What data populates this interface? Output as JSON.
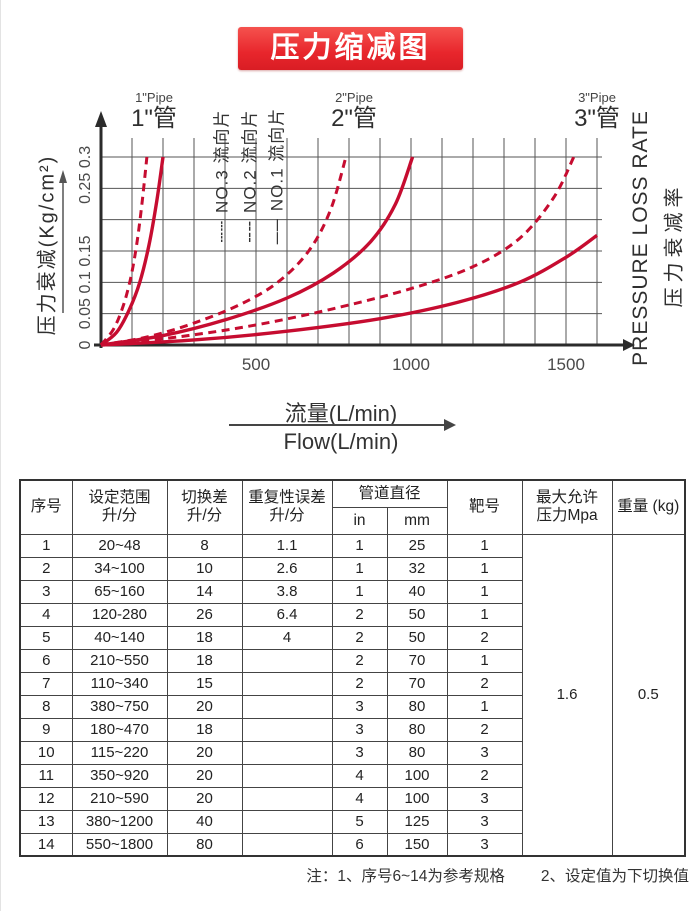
{
  "page": {
    "title_banner": "压力缩减图"
  },
  "chart_data": {
    "type": "line",
    "title": "压力缩减图",
    "x_axis": {
      "label_cn": "流量(L/min)",
      "label_en": "Flow(L/min)",
      "ticks": [
        500,
        1000,
        1500
      ],
      "range": [
        0,
        1600
      ],
      "grid_step": 100
    },
    "y_axis": {
      "label_left": "压力衰减(Kg/cm²)",
      "label_right_en": "PRESSURE LOSS RATE",
      "label_right_cn": "压力衰减率",
      "ticks": [
        {
          "label": "0",
          "value": 0
        },
        {
          "label": "0.05",
          "value": 0.05
        },
        {
          "label": "0.1",
          "value": 0.1
        },
        {
          "label": "0.15",
          "value": 0.15
        },
        {
          "label": "0.25",
          "value": 0.25
        },
        {
          "label": "0.3",
          "value": 0.3
        }
      ],
      "range": [
        0,
        0.3
      ],
      "grid_step": 0.05
    },
    "pipe_labels": [
      {
        "en": "1\"Pipe",
        "cn": "1\"管"
      },
      {
        "en": "2\"Pipe",
        "cn": "2\"管"
      },
      {
        "en": "3\"Pipe",
        "cn": "3\"管"
      }
    ],
    "legend": [
      {
        "symbol": "┄┄",
        "label": "NO.3 流向片",
        "style": "dashed"
      },
      {
        "symbol": "╌╌",
        "label": "NO.2 流向片",
        "style": "dashed"
      },
      {
        "symbol": "──",
        "label": "NO.1 流向片",
        "style": "solid"
      }
    ],
    "line_color": "#c60c30",
    "grid_on": true,
    "series": [
      {
        "name": "1\"管 dashed",
        "style": "dashed",
        "points": [
          [
            0,
            0
          ],
          [
            40,
            0.025
          ],
          [
            70,
            0.06
          ],
          [
            95,
            0.105
          ],
          [
            115,
            0.16
          ],
          [
            132,
            0.225
          ],
          [
            148,
            0.3
          ]
        ]
      },
      {
        "name": "1\"管 solid",
        "style": "solid",
        "points": [
          [
            0,
            0
          ],
          [
            50,
            0.02
          ],
          [
            90,
            0.055
          ],
          [
            125,
            0.1
          ],
          [
            155,
            0.16
          ],
          [
            180,
            0.23
          ],
          [
            200,
            0.3
          ]
        ]
      },
      {
        "name": "2\"管 dashed",
        "style": "dashed",
        "points": [
          [
            0,
            0
          ],
          [
            150,
            0.013
          ],
          [
            300,
            0.035
          ],
          [
            450,
            0.065
          ],
          [
            570,
            0.1
          ],
          [
            670,
            0.15
          ],
          [
            740,
            0.215
          ],
          [
            790,
            0.3
          ]
        ]
      },
      {
        "name": "2\"管 solid",
        "style": "solid",
        "points": [
          [
            0,
            0
          ],
          [
            200,
            0.015
          ],
          [
            400,
            0.04
          ],
          [
            600,
            0.075
          ],
          [
            750,
            0.115
          ],
          [
            870,
            0.165
          ],
          [
            950,
            0.225
          ],
          [
            1005,
            0.3
          ]
        ]
      },
      {
        "name": "3\"管 dashed",
        "style": "dashed",
        "points": [
          [
            0,
            0
          ],
          [
            250,
            0.013
          ],
          [
            500,
            0.032
          ],
          [
            750,
            0.058
          ],
          [
            1000,
            0.09
          ],
          [
            1200,
            0.125
          ],
          [
            1350,
            0.17
          ],
          [
            1460,
            0.235
          ],
          [
            1525,
            0.3
          ]
        ]
      },
      {
        "name": "3\"管 solid",
        "style": "solid",
        "points": [
          [
            0,
            0
          ],
          [
            300,
            0.008
          ],
          [
            600,
            0.022
          ],
          [
            900,
            0.042
          ],
          [
            1150,
            0.068
          ],
          [
            1350,
            0.1
          ],
          [
            1500,
            0.14
          ],
          [
            1600,
            0.175
          ]
        ]
      }
    ]
  },
  "table": {
    "headers": {
      "serial": "序号",
      "range_l1": "设定范围",
      "range_l2": "升/分",
      "diff_l1": "切换差",
      "diff_l2": "升/分",
      "error_l1": "重复性误差",
      "error_l2": "升/分",
      "pipe": "管道直径",
      "pipe_in": "in",
      "pipe_mm": "mm",
      "target": "靶号",
      "pressure_l1": "最大允许",
      "pressure_l2": "压力Mpa",
      "weight": "重量 (kg)"
    },
    "merged": {
      "max_pressure": "1.6",
      "weight": "0.5"
    },
    "rows": [
      [
        "1",
        "20~48",
        "8",
        "1.1",
        "1",
        "25",
        "1"
      ],
      [
        "2",
        "34~100",
        "10",
        "2.6",
        "1",
        "32",
        "1"
      ],
      [
        "3",
        "65~160",
        "14",
        "3.8",
        "1",
        "40",
        "1"
      ],
      [
        "4",
        "120-280",
        "26",
        "6.4",
        "2",
        "50",
        "1"
      ],
      [
        "5",
        "40~140",
        "18",
        "4",
        "2",
        "50",
        "2"
      ],
      [
        "6",
        "210~550",
        "18",
        "",
        "2",
        "70",
        "1"
      ],
      [
        "7",
        "110~340",
        "15",
        "",
        "2",
        "70",
        "2"
      ],
      [
        "8",
        "380~750",
        "20",
        "",
        "3",
        "80",
        "1"
      ],
      [
        "9",
        "180~470",
        "18",
        "",
        "3",
        "80",
        "2"
      ],
      [
        "10",
        "115~220",
        "20",
        "",
        "3",
        "80",
        "3"
      ],
      [
        "11",
        "350~920",
        "20",
        "",
        "4",
        "100",
        "2"
      ],
      [
        "12",
        "210~590",
        "20",
        "",
        "4",
        "100",
        "3"
      ],
      [
        "13",
        "380~1200",
        "40",
        "",
        "5",
        "125",
        "3"
      ],
      [
        "14",
        "550~1800",
        "80",
        "",
        "6",
        "150",
        "3"
      ]
    ]
  },
  "note": {
    "item1": "注：1、序号6~14为参考规格",
    "item2": "2、设定值为下切换值"
  }
}
